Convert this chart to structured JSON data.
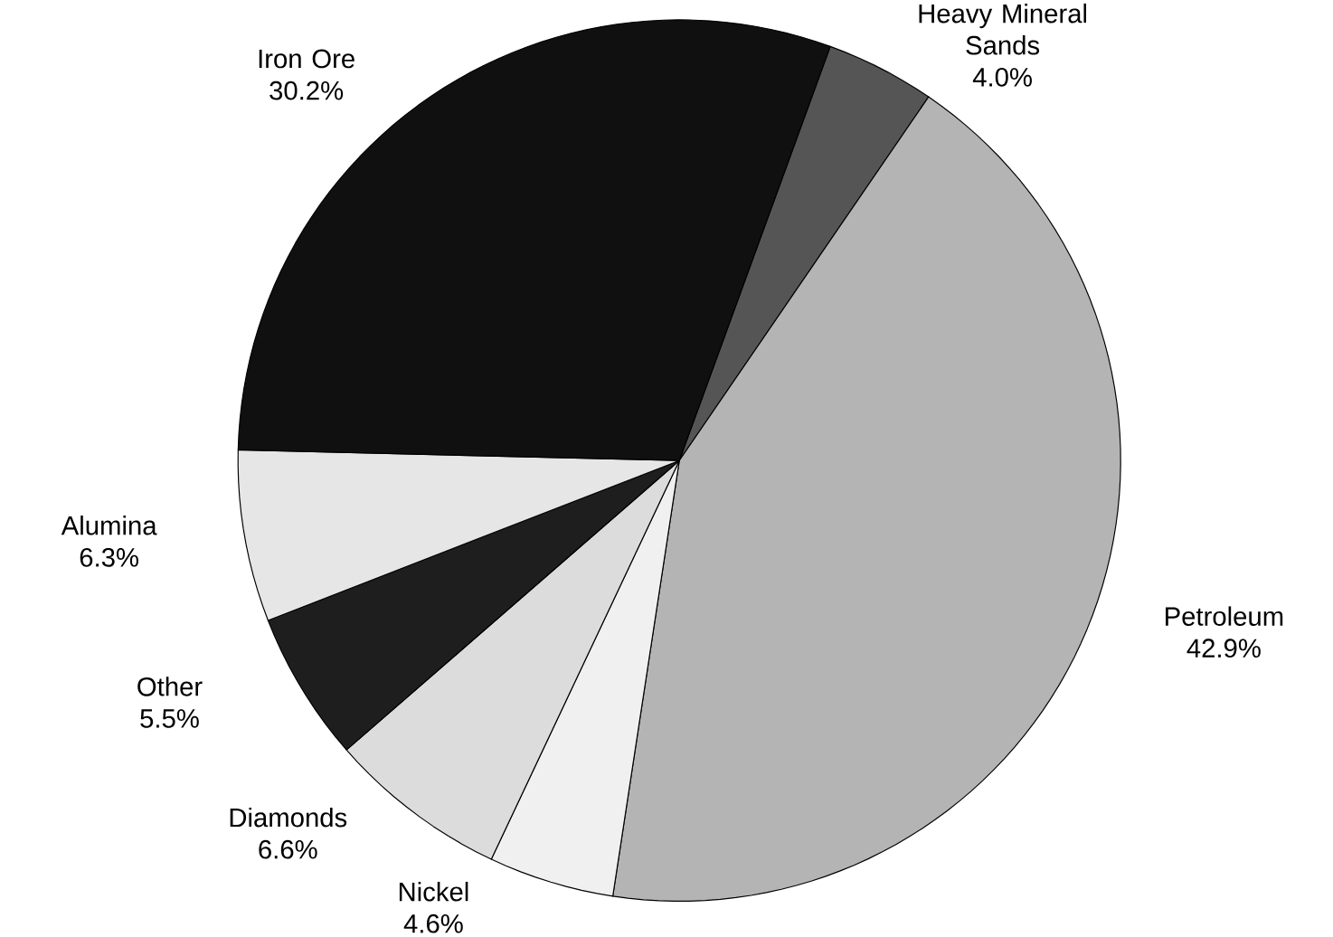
{
  "chart_data": {
    "type": "pie",
    "categories": [
      "Heavy Mineral Sands",
      "Petroleum",
      "Nickel",
      "Diamonds",
      "Other",
      "Alumina",
      "Iron Ore"
    ],
    "values": [
      4.0,
      42.9,
      4.6,
      6.6,
      5.5,
      6.3,
      30.2
    ],
    "value_labels": [
      "4.0%",
      "42.9%",
      "4.6%",
      "6.6%",
      "5.5%",
      "6.3%",
      "30.2%"
    ],
    "colors": [
      "#555555",
      "#b4b4b4",
      "#f0f0f0",
      "#dcdcdc",
      "#1e1e1e",
      "#e6e6e6",
      "#101010"
    ]
  }
}
